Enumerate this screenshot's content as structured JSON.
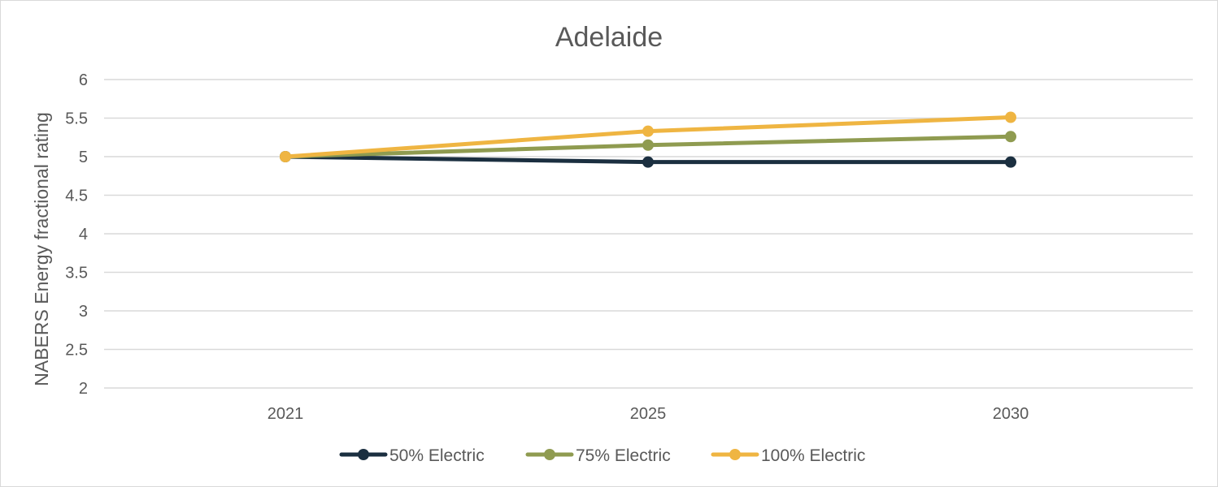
{
  "chart_data": {
    "type": "line",
    "title": "Adelaide",
    "xlabel": "",
    "ylabel": "NABERS Energy fractional rating",
    "categories": [
      "2021",
      "2025",
      "2030"
    ],
    "ylim": [
      2,
      6
    ],
    "yticks": [
      2,
      2.5,
      3,
      3.5,
      4,
      4.5,
      5,
      5.5,
      6
    ],
    "ytick_labels": [
      "2",
      "2.5",
      "3",
      "3.5",
      "4",
      "4.5",
      "5",
      "5.5",
      "6"
    ],
    "grid": true,
    "legend_position": "bottom",
    "series": [
      {
        "name": "50% Electric",
        "color": "#1b2f40",
        "values": [
          5.0,
          4.93,
          4.93
        ]
      },
      {
        "name": "75% Electric",
        "color": "#8f9b50",
        "values": [
          5.0,
          5.15,
          5.26
        ]
      },
      {
        "name": "100% Electric",
        "color": "#efb542",
        "values": [
          5.0,
          5.33,
          5.51
        ]
      }
    ]
  }
}
